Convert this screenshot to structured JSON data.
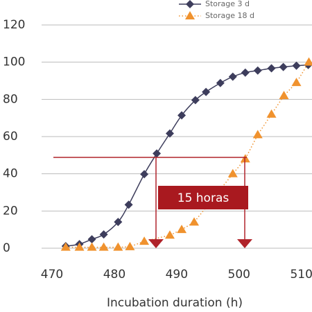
{
  "chart_data": {
    "type": "line",
    "xlabel": "Incubation duration (h)",
    "xlim": [
      468,
      511.7
    ],
    "xticks": [
      470,
      480,
      490,
      500,
      510
    ],
    "ylim": [
      0,
      120
    ],
    "yticks": [
      0,
      20,
      40,
      60,
      80,
      100,
      120
    ],
    "grid": true,
    "series": [
      {
        "name": "Storage 3 d",
        "color": "#3d3d5c",
        "marker": "diamond",
        "line": "solid",
        "x": [
          472.2,
          474.4,
          476.4,
          478.3,
          480.6,
          482.3,
          484.8,
          486.8,
          488.9,
          490.8,
          493,
          494.7,
          497,
          499,
          501,
          503,
          505.2,
          507.1,
          509.2,
          511.1
        ],
        "values": [
          1.1,
          2.2,
          4.8,
          7.4,
          14.1,
          23.4,
          39.8,
          50.9,
          61.7,
          71.4,
          79.6,
          84,
          88.8,
          92.2,
          94.4,
          95.5,
          96.7,
          97.4,
          98.1,
          98.5
        ]
      },
      {
        "name": "Storage 18 d",
        "color": "#f0922e",
        "marker": "triangle",
        "line": "dotted",
        "x": [
          472.2,
          474.4,
          476.4,
          478.3,
          480.6,
          482.5,
          484.8,
          488.9,
          490.8,
          492.8,
          499,
          501,
          503,
          505.2,
          507.2,
          509.2,
          511.2
        ],
        "values": [
          0.5,
          0.5,
          0.5,
          0.5,
          0.5,
          0.8,
          3.7,
          7,
          10,
          14,
          40,
          48,
          61,
          72,
          82,
          89,
          100
        ]
      }
    ],
    "annotations": [
      "15 horas"
    ]
  }
}
